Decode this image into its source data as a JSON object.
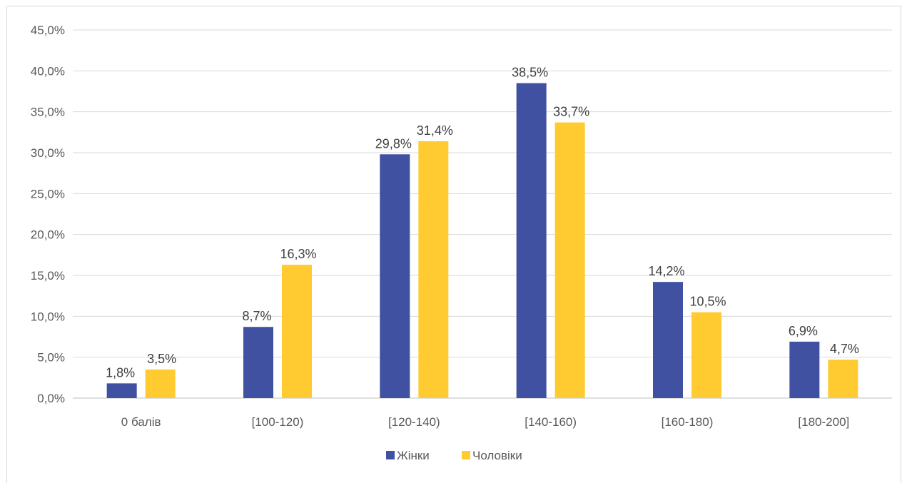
{
  "chart_data": {
    "type": "bar",
    "categories": [
      "0 балів",
      "[100-120)",
      "[120-140)",
      "[140-160)",
      "[160-180)",
      "[180-200]"
    ],
    "series": [
      {
        "name": "Жінки",
        "color": "#3f51a0",
        "values": [
          1.8,
          8.7,
          29.8,
          38.5,
          14.2,
          6.9
        ],
        "labels": [
          "1,8%",
          "8,7%",
          "29,8%",
          "38,5%",
          "14,2%",
          "6,9%"
        ]
      },
      {
        "name": "Чоловіки",
        "color": "#ffcb31",
        "values": [
          3.5,
          16.3,
          31.4,
          33.7,
          10.5,
          4.7
        ],
        "labels": [
          "3,5%",
          "16,3%",
          "31,4%",
          "33,7%",
          "10,5%",
          "4,7%"
        ]
      }
    ],
    "ylim": [
      0,
      45
    ],
    "yticks": [
      0,
      5,
      10,
      15,
      20,
      25,
      30,
      35,
      40,
      45
    ],
    "ytick_labels": [
      "0,0%",
      "5,0%",
      "10,0%",
      "15,0%",
      "20,0%",
      "25,0%",
      "30,0%",
      "35,0%",
      "40,0%",
      "45,0%"
    ],
    "grid": true,
    "legend_position": "bottom"
  }
}
